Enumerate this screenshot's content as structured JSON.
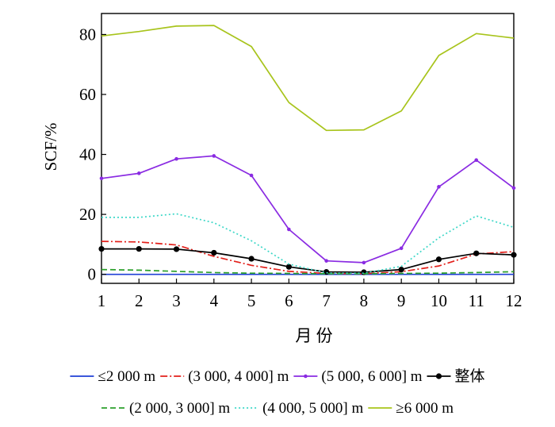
{
  "chart_data": {
    "type": "line",
    "title": "",
    "xlabel": "月 份",
    "ylabel": "SCF/%",
    "x": [
      1,
      2,
      3,
      4,
      5,
      6,
      7,
      8,
      9,
      10,
      11,
      12
    ],
    "xlim": [
      1,
      12
    ],
    "ylim": [
      -3,
      87
    ],
    "yticks": [
      0,
      20,
      40,
      60,
      80
    ],
    "grid": false,
    "legend_position": "bottom",
    "series": [
      {
        "name": "≤2 000 m",
        "color": "#1f3fd6",
        "style": "solid",
        "marker": "none",
        "values": [
          0,
          0,
          0,
          0,
          0,
          0,
          0,
          0,
          0,
          0,
          0,
          0
        ]
      },
      {
        "name": "(3 000, 4 000] m",
        "color": "#e3201b",
        "style": "dashdot",
        "marker": "none",
        "values": [
          11.0,
          10.8,
          9.8,
          6.0,
          3.0,
          1.0,
          0.3,
          0.2,
          0.9,
          2.8,
          6.8,
          7.6
        ]
      },
      {
        "name": "(5 000, 6 000] m",
        "color": "#8a2be2",
        "style": "solid",
        "marker": "dot-small",
        "values": [
          32.0,
          33.7,
          38.5,
          39.5,
          33.0,
          15.0,
          4.5,
          3.9,
          8.7,
          29.2,
          38.1,
          28.8
        ]
      },
      {
        "name": "整体",
        "color": "#000000",
        "style": "solid",
        "marker": "dot",
        "values": [
          8.5,
          8.5,
          8.4,
          7.2,
          5.2,
          2.5,
          0.8,
          0.7,
          1.6,
          5.0,
          7.0,
          6.5
        ]
      },
      {
        "name": "(2 000, 3 000] m",
        "color": "#2ca02c",
        "style": "dashed",
        "marker": "none",
        "values": [
          1.6,
          1.4,
          1.0,
          0.6,
          0.4,
          0.3,
          0.2,
          0.2,
          0.3,
          0.4,
          0.6,
          0.9
        ]
      },
      {
        "name": "(4 000, 5 000] m",
        "color": "#3fd8c8",
        "style": "dotted",
        "marker": "none",
        "values": [
          19.0,
          19.0,
          20.2,
          17.2,
          11.2,
          3.4,
          0.5,
          0.4,
          2.7,
          12.2,
          19.5,
          15.7
        ]
      },
      {
        "name": "≥6 000 m",
        "color": "#a8c41c",
        "style": "solid",
        "marker": "none",
        "values": [
          79.5,
          81.0,
          82.8,
          83.0,
          76.0,
          57.3,
          48.0,
          48.2,
          54.5,
          73.0,
          80.3,
          78.8
        ]
      }
    ],
    "legend_rows": [
      [
        0,
        1,
        2,
        3
      ],
      [
        4,
        5,
        6
      ]
    ]
  }
}
